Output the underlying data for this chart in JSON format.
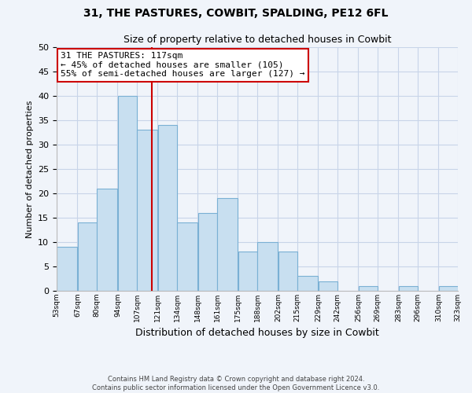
{
  "title": "31, THE PASTURES, COWBIT, SPALDING, PE12 6FL",
  "subtitle": "Size of property relative to detached houses in Cowbit",
  "xlabel": "Distribution of detached houses by size in Cowbit",
  "ylabel": "Number of detached properties",
  "bin_edges": [
    53,
    67,
    80,
    94,
    107,
    121,
    134,
    148,
    161,
    175,
    188,
    202,
    215,
    229,
    242,
    256,
    269,
    283,
    296,
    310,
    323
  ],
  "bin_labels": [
    "53sqm",
    "67sqm",
    "80sqm",
    "94sqm",
    "107sqm",
    "121sqm",
    "134sqm",
    "148sqm",
    "161sqm",
    "175sqm",
    "188sqm",
    "202sqm",
    "215sqm",
    "229sqm",
    "242sqm",
    "256sqm",
    "269sqm",
    "283sqm",
    "296sqm",
    "310sqm",
    "323sqm"
  ],
  "counts": [
    9,
    14,
    21,
    40,
    33,
    34,
    14,
    16,
    19,
    8,
    10,
    8,
    3,
    2,
    0,
    1,
    0,
    1,
    0,
    1
  ],
  "bar_color": "#c8dff0",
  "bar_edge_color": "#7ab0d4",
  "vline_x": 117,
  "vline_color": "#cc0000",
  "annotation_title": "31 THE PASTURES: 117sqm",
  "annotation_line1": "← 45% of detached houses are smaller (105)",
  "annotation_line2": "55% of semi-detached houses are larger (127) →",
  "annotation_box_color": "#ffffff",
  "annotation_box_edge": "#cc0000",
  "ylim": [
    0,
    50
  ],
  "yticks": [
    0,
    5,
    10,
    15,
    20,
    25,
    30,
    35,
    40,
    45,
    50
  ],
  "footer_line1": "Contains HM Land Registry data © Crown copyright and database right 2024.",
  "footer_line2": "Contains public sector information licensed under the Open Government Licence v3.0.",
  "bg_color": "#f0f4fa",
  "grid_color": "#c8d4e8"
}
